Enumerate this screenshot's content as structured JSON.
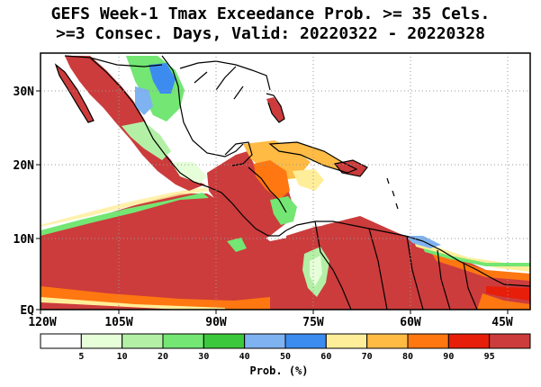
{
  "title": {
    "line1": "GEFS Week-1 Tmax Exceedance Prob. >= 35 Cels.",
    "line2": ">=3 Consec. Days, Valid: 20220322 - 20220328"
  },
  "map": {
    "region": "Central America / Caribbean / northern South America",
    "lat_labels": [
      "30N",
      "20N",
      "10N",
      "EQ"
    ],
    "lon_labels": [
      "120W",
      "105W",
      "90W",
      "75W",
      "60W",
      "45W"
    ],
    "grid": "dotted"
  },
  "colorbar": {
    "title": "Prob. (%)",
    "tick_labels": [
      "5",
      "10",
      "20",
      "30",
      "40",
      "50",
      "60",
      "70",
      "80",
      "90",
      "95"
    ],
    "colors": [
      "#ffffff",
      "#e6ffd9",
      "#b3f0a6",
      "#73e673",
      "#3cc83c",
      "#7fb2f0",
      "#3c8cf0",
      "#ffee99",
      "#ffbb44",
      "#ff7710",
      "#e61e0a",
      "#cc3c3c"
    ]
  },
  "colors": {
    "land_outline": "#000000",
    "grid_line": "#9a9a9a"
  }
}
